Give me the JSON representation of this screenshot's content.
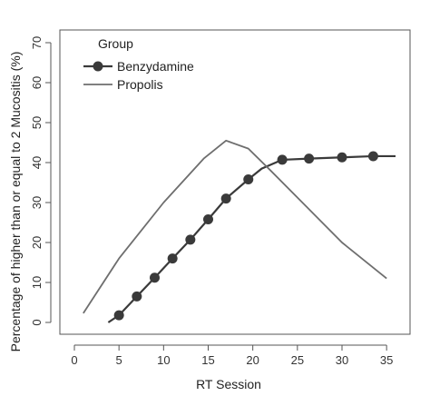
{
  "chart_data": {
    "type": "line",
    "xlabel": "RT Session",
    "ylabel": "Percentage of higher than or equal to 2 Mucositis (%)",
    "xlim": [
      0,
      36
    ],
    "ylim": [
      0,
      70
    ],
    "x_ticks": [
      0,
      5,
      10,
      15,
      20,
      25,
      30,
      35
    ],
    "y_ticks": [
      0,
      10,
      20,
      30,
      40,
      50,
      60,
      70
    ],
    "grid": false,
    "legend": {
      "title": "Group",
      "position": "top-left"
    },
    "series": [
      {
        "name": "Benzydamine",
        "color": "#3a3a3a",
        "marker": "circle",
        "x": [
          3.8,
          5,
          7,
          9,
          11,
          13,
          15,
          17,
          19.5,
          21,
          23.3,
          26.3,
          30,
          33.5,
          36
        ],
        "y": [
          0,
          1.8,
          6.5,
          11.2,
          16,
          20.7,
          25.8,
          31,
          35.8,
          38.5,
          40.7,
          41,
          41.3,
          41.6,
          41.6
        ],
        "marker_x": [
          5,
          7,
          9,
          11,
          13,
          15,
          17,
          19.5,
          23.3,
          26.3,
          30,
          33.5
        ],
        "marker_y": [
          1.8,
          6.5,
          11.2,
          16,
          20.7,
          25.8,
          31,
          35.8,
          40.7,
          41,
          41.3,
          41.6
        ]
      },
      {
        "name": "Propolis",
        "color": "#6e6e6e",
        "marker": "none",
        "x": [
          1,
          5,
          10,
          14.5,
          17,
          19.5,
          22,
          26,
          30,
          35
        ],
        "y": [
          2.3,
          16,
          30,
          41,
          45.5,
          43.5,
          38,
          29,
          20,
          11
        ]
      }
    ]
  }
}
